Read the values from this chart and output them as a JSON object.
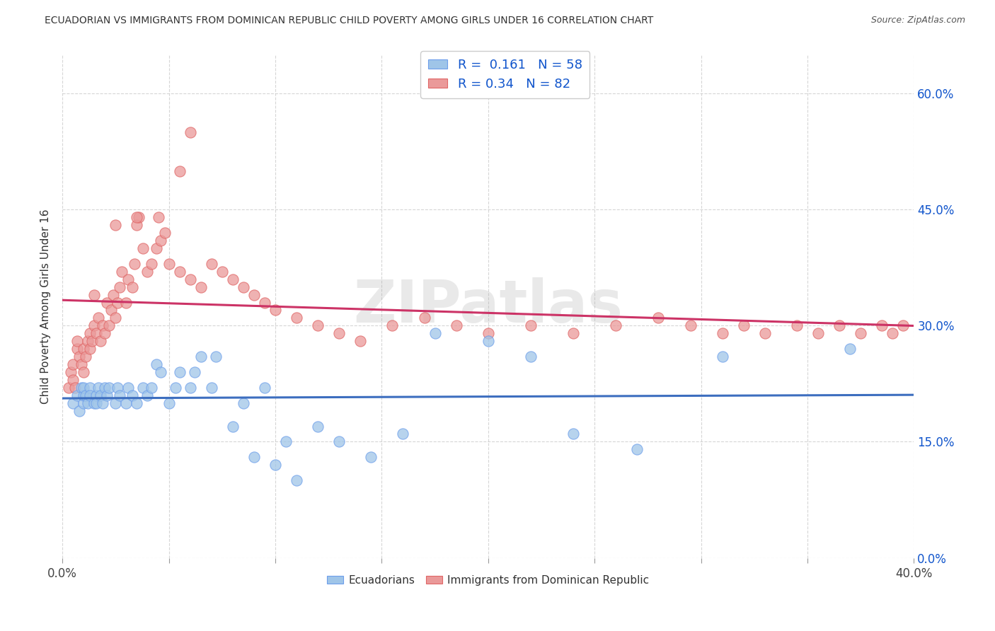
{
  "title": "ECUADORIAN VS IMMIGRANTS FROM DOMINICAN REPUBLIC CHILD POVERTY AMONG GIRLS UNDER 16 CORRELATION CHART",
  "source": "Source: ZipAtlas.com",
  "ylabel": "Child Poverty Among Girls Under 16",
  "xlim": [
    0.0,
    0.4
  ],
  "ylim": [
    0.0,
    0.65
  ],
  "xticks": [
    0.0,
    0.05,
    0.1,
    0.15,
    0.2,
    0.25,
    0.3,
    0.35,
    0.4
  ],
  "xtick_show_labels": [
    true,
    false,
    false,
    false,
    false,
    false,
    false,
    false,
    true
  ],
  "yticks": [
    0.0,
    0.15,
    0.3,
    0.45,
    0.6
  ],
  "ytick_right_labels": [
    "0.0%",
    "15.0%",
    "30.0%",
    "45.0%",
    "60.0%"
  ],
  "blue_R": 0.161,
  "blue_N": 58,
  "pink_R": 0.34,
  "pink_N": 82,
  "blue_color": "#9FC5E8",
  "pink_color": "#EA9999",
  "blue_edge_color": "#6D9EEB",
  "pink_edge_color": "#E06666",
  "blue_line_color": "#3D6EBF",
  "pink_line_color": "#CC3366",
  "legend_text_color": "#1155CC",
  "watermark": "ZIPatlas",
  "blue_scatter_x": [
    0.005,
    0.007,
    0.008,
    0.009,
    0.01,
    0.01,
    0.01,
    0.011,
    0.012,
    0.013,
    0.013,
    0.015,
    0.016,
    0.016,
    0.017,
    0.018,
    0.019,
    0.02,
    0.021,
    0.022,
    0.025,
    0.026,
    0.027,
    0.03,
    0.031,
    0.033,
    0.035,
    0.038,
    0.04,
    0.042,
    0.044,
    0.046,
    0.05,
    0.053,
    0.055,
    0.06,
    0.062,
    0.065,
    0.07,
    0.072,
    0.08,
    0.085,
    0.09,
    0.095,
    0.1,
    0.105,
    0.11,
    0.12,
    0.13,
    0.145,
    0.16,
    0.175,
    0.2,
    0.22,
    0.24,
    0.27,
    0.31,
    0.37
  ],
  "blue_scatter_y": [
    0.2,
    0.21,
    0.19,
    0.22,
    0.2,
    0.21,
    0.22,
    0.21,
    0.2,
    0.22,
    0.21,
    0.2,
    0.21,
    0.2,
    0.22,
    0.21,
    0.2,
    0.22,
    0.21,
    0.22,
    0.2,
    0.22,
    0.21,
    0.2,
    0.22,
    0.21,
    0.2,
    0.22,
    0.21,
    0.22,
    0.25,
    0.24,
    0.2,
    0.22,
    0.24,
    0.22,
    0.24,
    0.26,
    0.22,
    0.26,
    0.17,
    0.2,
    0.13,
    0.22,
    0.12,
    0.15,
    0.1,
    0.17,
    0.15,
    0.13,
    0.16,
    0.29,
    0.28,
    0.26,
    0.16,
    0.14,
    0.26,
    0.27
  ],
  "pink_scatter_x": [
    0.003,
    0.004,
    0.005,
    0.005,
    0.006,
    0.007,
    0.007,
    0.008,
    0.009,
    0.01,
    0.01,
    0.011,
    0.012,
    0.013,
    0.013,
    0.014,
    0.015,
    0.016,
    0.017,
    0.018,
    0.019,
    0.02,
    0.021,
    0.022,
    0.023,
    0.024,
    0.025,
    0.026,
    0.027,
    0.028,
    0.03,
    0.031,
    0.033,
    0.034,
    0.035,
    0.036,
    0.038,
    0.04,
    0.042,
    0.044,
    0.046,
    0.048,
    0.05,
    0.055,
    0.06,
    0.065,
    0.07,
    0.075,
    0.08,
    0.085,
    0.09,
    0.095,
    0.1,
    0.11,
    0.12,
    0.13,
    0.14,
    0.155,
    0.17,
    0.185,
    0.2,
    0.22,
    0.24,
    0.26,
    0.28,
    0.295,
    0.31,
    0.32,
    0.33,
    0.345,
    0.355,
    0.365,
    0.375,
    0.385,
    0.39,
    0.395,
    0.06,
    0.055,
    0.045,
    0.035,
    0.025,
    0.015
  ],
  "pink_scatter_y": [
    0.22,
    0.24,
    0.23,
    0.25,
    0.22,
    0.27,
    0.28,
    0.26,
    0.25,
    0.24,
    0.27,
    0.26,
    0.28,
    0.27,
    0.29,
    0.28,
    0.3,
    0.29,
    0.31,
    0.28,
    0.3,
    0.29,
    0.33,
    0.3,
    0.32,
    0.34,
    0.31,
    0.33,
    0.35,
    0.37,
    0.33,
    0.36,
    0.35,
    0.38,
    0.43,
    0.44,
    0.4,
    0.37,
    0.38,
    0.4,
    0.41,
    0.42,
    0.38,
    0.37,
    0.36,
    0.35,
    0.38,
    0.37,
    0.36,
    0.35,
    0.34,
    0.33,
    0.32,
    0.31,
    0.3,
    0.29,
    0.28,
    0.3,
    0.31,
    0.3,
    0.29,
    0.3,
    0.29,
    0.3,
    0.31,
    0.3,
    0.29,
    0.3,
    0.29,
    0.3,
    0.29,
    0.3,
    0.29,
    0.3,
    0.29,
    0.3,
    0.55,
    0.5,
    0.44,
    0.44,
    0.43,
    0.34
  ]
}
